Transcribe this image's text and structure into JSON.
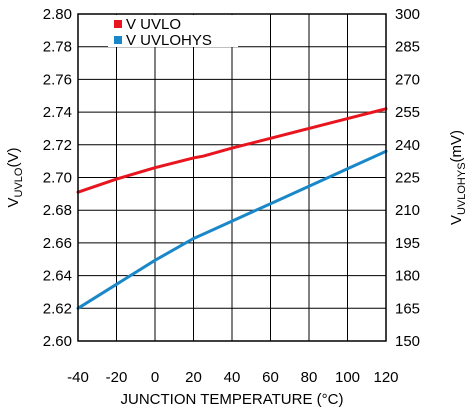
{
  "chart_data": {
    "type": "line",
    "xlabel": "JUNCTION TEMPERATURE (°C)",
    "ylabel_left": {
      "main": "V",
      "sub": "UVLO",
      "unit": "(V)"
    },
    "ylabel_right": {
      "main": "V",
      "sub": "UVLOHYS",
      "unit": "(mV)"
    },
    "x_ticks": [
      -40,
      -20,
      0,
      20,
      40,
      60,
      80,
      100,
      120
    ],
    "xlim": [
      -40,
      120
    ],
    "y_left_ticks": [
      "2.80",
      "2.78",
      "2.76",
      "2.74",
      "2.72",
      "2.70",
      "2.68",
      "2.66",
      "2.64",
      "2.62",
      "2.60"
    ],
    "ylim_left": [
      2.6,
      2.8
    ],
    "y_right_ticks": [
      "300",
      "285",
      "270",
      "255",
      "240",
      "225",
      "210",
      "195",
      "180",
      "165",
      "150"
    ],
    "ylim_right": [
      150,
      300
    ],
    "grid": true,
    "legend": "top-left",
    "series": [
      {
        "name": "V UVLO",
        "axis": "left",
        "color": "#e8141e",
        "x": [
          -40,
          -20,
          0,
          20,
          25,
          40,
          60,
          80,
          100,
          120
        ],
        "values": [
          2.691,
          2.699,
          2.706,
          2.712,
          2.713,
          2.718,
          2.724,
          2.73,
          2.736,
          2.742
        ]
      },
      {
        "name": "V UVLOHYS",
        "axis": "right",
        "color": "#1a88c8",
        "x": [
          -40,
          -20,
          0,
          20,
          25,
          40,
          60,
          80,
          100,
          120
        ],
        "values": [
          165.0,
          176.0,
          187.0,
          197.0,
          199.0,
          205.0,
          213.0,
          221.0,
          229.0,
          237.0
        ]
      }
    ]
  }
}
